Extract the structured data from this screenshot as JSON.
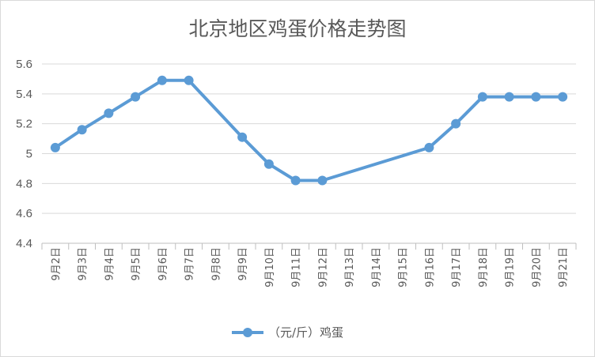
{
  "chart_data": {
    "type": "line",
    "title": "北京地区鸡蛋价格走势图",
    "xlabel": "",
    "ylabel": "",
    "categories": [
      "9月2日",
      "9月3日",
      "9月4日",
      "9月5日",
      "9月6日",
      "9月7日",
      "9月8日",
      "9月9日",
      "9月10日",
      "9月11日",
      "9月12日",
      "9月13日",
      "9月14日",
      "9月15日",
      "9月16日",
      "9月17日",
      "9月18日",
      "9月19日",
      "9月20日",
      "9月21日"
    ],
    "series": [
      {
        "name": "（元/斤）鸡蛋",
        "color": "#5b9bd5",
        "values": [
          5.04,
          5.16,
          5.27,
          5.38,
          5.49,
          5.49,
          null,
          5.11,
          4.93,
          4.82,
          4.82,
          null,
          null,
          null,
          5.04,
          5.2,
          5.38,
          5.38,
          5.38,
          5.38
        ]
      }
    ],
    "ylim": [
      4.4,
      5.6
    ],
    "yticks": [
      "4.4",
      "4.6",
      "4.8",
      "5",
      "5.2",
      "5.4",
      "5.6"
    ],
    "grid": true,
    "legend_position": "bottom"
  }
}
